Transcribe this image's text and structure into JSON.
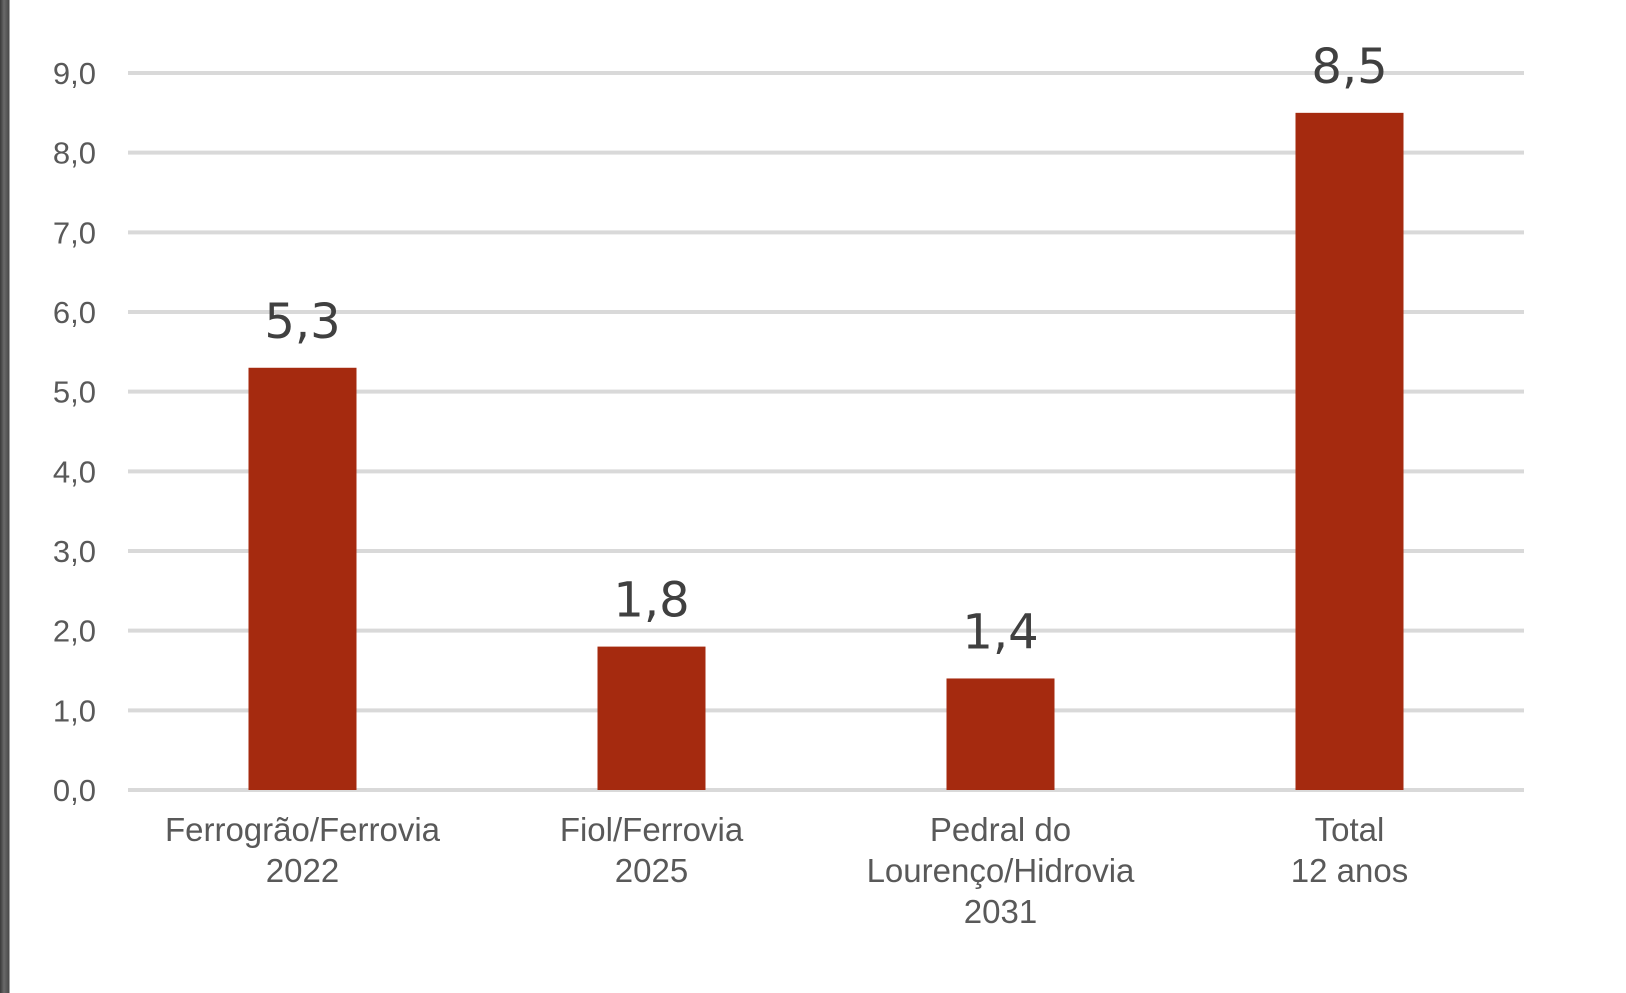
{
  "chart_data": {
    "type": "bar",
    "categories": [
      [
        "Ferrogrão/Ferrovia",
        "2022"
      ],
      [
        "Fiol/Ferrovia",
        "2025"
      ],
      [
        "Pedral do",
        "Lourenço/Hidrovia",
        "2031"
      ],
      [
        "Total",
        "12 anos"
      ]
    ],
    "values": [
      5.3,
      1.8,
      1.4,
      8.5
    ],
    "data_labels": [
      "5,3",
      "1,8",
      "1,4",
      "8,5"
    ],
    "ylim": [
      0,
      9
    ],
    "yticks": [
      0,
      1,
      2,
      3,
      4,
      5,
      6,
      7,
      8,
      9
    ],
    "ytick_labels": [
      "0,0",
      "1,0",
      "2,0",
      "3,0",
      "4,0",
      "5,0",
      "6,0",
      "7,0",
      "8,0",
      "9,0"
    ],
    "title": "",
    "xlabel": "",
    "ylabel": "",
    "grid": true,
    "legend": "none",
    "colors": {
      "bar": "#a52a0f",
      "grid": "#d9d9d9",
      "axis_text": "#595959",
      "data_label_text": "#404040"
    }
  }
}
